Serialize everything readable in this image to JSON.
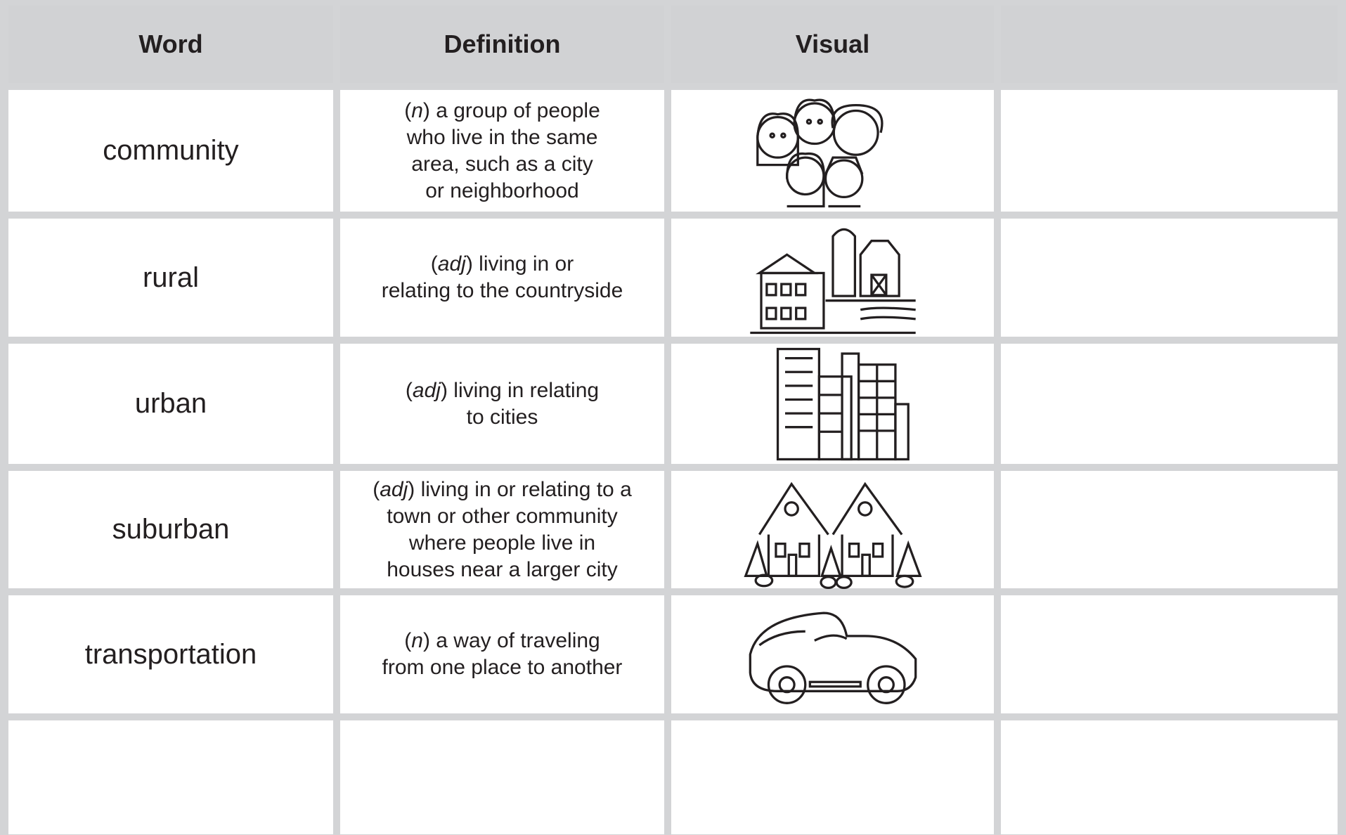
{
  "table": {
    "headers": [
      "Word",
      "Definition",
      "Visual"
    ],
    "rows": [
      {
        "word": "community",
        "definition": [
          [
            "(",
            "n",
            ") a group of people"
          ],
          [
            "who live in the same"
          ],
          [
            "area, such as a city"
          ],
          [
            "or neighborhood"
          ]
        ]
      },
      {
        "word": "rural",
        "definition": [
          [
            "(",
            "adj",
            ") living in or"
          ],
          [
            "relating to the countryside"
          ]
        ]
      },
      {
        "word": "urban",
        "definition": [
          [
            "(",
            "adj",
            ") living in relating"
          ],
          [
            "to cities"
          ]
        ]
      },
      {
        "word": "suburban",
        "definition": [
          [
            "(",
            "adj",
            ") living in or relating to a"
          ],
          [
            "town or other community"
          ],
          [
            "where people live in"
          ],
          [
            "houses near a larger city"
          ]
        ]
      },
      {
        "word": "transportation",
        "definition": [
          [
            "(",
            "n",
            ") a way of traveling"
          ],
          [
            "from one place to another"
          ]
        ]
      }
    ]
  }
}
